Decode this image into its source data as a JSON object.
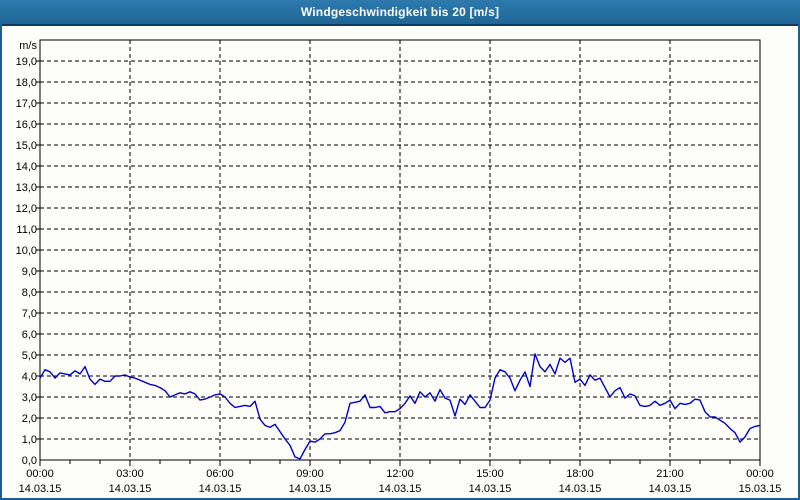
{
  "window": {
    "title": "Windgeschwindigkeit bis 20 [m/s]"
  },
  "colors": {
    "titlebar_top": "#2e7aae",
    "titlebar_bottom": "#1e6694",
    "titlebar_text": "#ffffff",
    "titlebar_divider": "#0e3c60",
    "window_border": "#1d5d92",
    "background": "#fdfdfa",
    "axis": "#000000",
    "grid": "#000000",
    "series_line": "#0000cc",
    "label_text": "#000000"
  },
  "chart_data": {
    "type": "line",
    "title": "Windgeschwindigkeit bis 20 [m/s]",
    "unit_label": "m/s",
    "ylim": [
      0,
      20
    ],
    "y_tick_step": 1.0,
    "y_tick_labels": [
      "0,0",
      "1,0",
      "2,0",
      "3,0",
      "4,0",
      "5,0",
      "6,0",
      "7,0",
      "8,0",
      "9,0",
      "10,0",
      "11,0",
      "12,0",
      "13,0",
      "14,0",
      "15,0",
      "16,0",
      "17,0",
      "18,0",
      "19,0"
    ],
    "x_total_hours": 24,
    "x_minor_tick_hours": 1,
    "x_major_tick_hours": 3,
    "grid": {
      "horizontal": "dashed",
      "vertical": "dashed"
    },
    "x_ticks": [
      {
        "hour": 0,
        "time": "00:00",
        "date": "14.03.15"
      },
      {
        "hour": 3,
        "time": "03:00",
        "date": "14.03.15"
      },
      {
        "hour": 6,
        "time": "06:00",
        "date": "14.03.15"
      },
      {
        "hour": 9,
        "time": "09:00",
        "date": "14.03.15"
      },
      {
        "hour": 12,
        "time": "12:00",
        "date": "14.03.15"
      },
      {
        "hour": 15,
        "time": "15:00",
        "date": "14.03.15"
      },
      {
        "hour": 18,
        "time": "18:00",
        "date": "14.03.15"
      },
      {
        "hour": 21,
        "time": "21:00",
        "date": "14.03.15"
      },
      {
        "hour": 24,
        "time": "00:00",
        "date": "15.03.15"
      }
    ],
    "series": [
      {
        "name": "Windgeschwindigkeit",
        "color": "#0000cc",
        "sample_interval_minutes": 10,
        "values": [
          3.9,
          4.3,
          4.2,
          3.9,
          4.15,
          4.1,
          4.05,
          4.25,
          4.1,
          4.45,
          3.85,
          3.6,
          3.85,
          3.75,
          3.75,
          4.0,
          4.0,
          4.05,
          3.95,
          3.9,
          3.8,
          3.7,
          3.6,
          3.55,
          3.45,
          3.3,
          3.0,
          3.1,
          3.2,
          3.15,
          3.25,
          3.15,
          2.85,
          2.9,
          3.0,
          3.1,
          3.15,
          3.0,
          2.7,
          2.5,
          2.55,
          2.6,
          2.55,
          2.8,
          1.95,
          1.65,
          1.55,
          1.7,
          1.35,
          1.0,
          0.7,
          0.15,
          0.05,
          0.5,
          0.9,
          0.85,
          1.0,
          1.25,
          1.25,
          1.3,
          1.4,
          1.8,
          2.7,
          2.75,
          2.8,
          3.1,
          2.5,
          2.5,
          2.55,
          2.25,
          2.3,
          2.3,
          2.45,
          2.7,
          3.05,
          2.7,
          3.25,
          3.0,
          3.2,
          2.8,
          3.35,
          2.95,
          2.85,
          2.1,
          2.9,
          2.65,
          3.1,
          2.8,
          2.5,
          2.5,
          2.85,
          3.9,
          4.3,
          4.2,
          3.9,
          3.3,
          3.8,
          4.2,
          3.5,
          5.05,
          4.45,
          4.2,
          4.55,
          4.1,
          4.85,
          4.65,
          4.85,
          3.7,
          3.85,
          3.55,
          4.05,
          3.8,
          3.9,
          3.45,
          3.0,
          3.3,
          3.45,
          2.95,
          3.15,
          3.05,
          2.6,
          2.55,
          2.6,
          2.8,
          2.6,
          2.7,
          2.85,
          2.45,
          2.7,
          2.65,
          2.7,
          2.9,
          2.85,
          2.3,
          2.05,
          2.05,
          1.9,
          1.75,
          1.5,
          1.3,
          0.85,
          1.1,
          1.5,
          1.6,
          1.65
        ]
      }
    ]
  }
}
